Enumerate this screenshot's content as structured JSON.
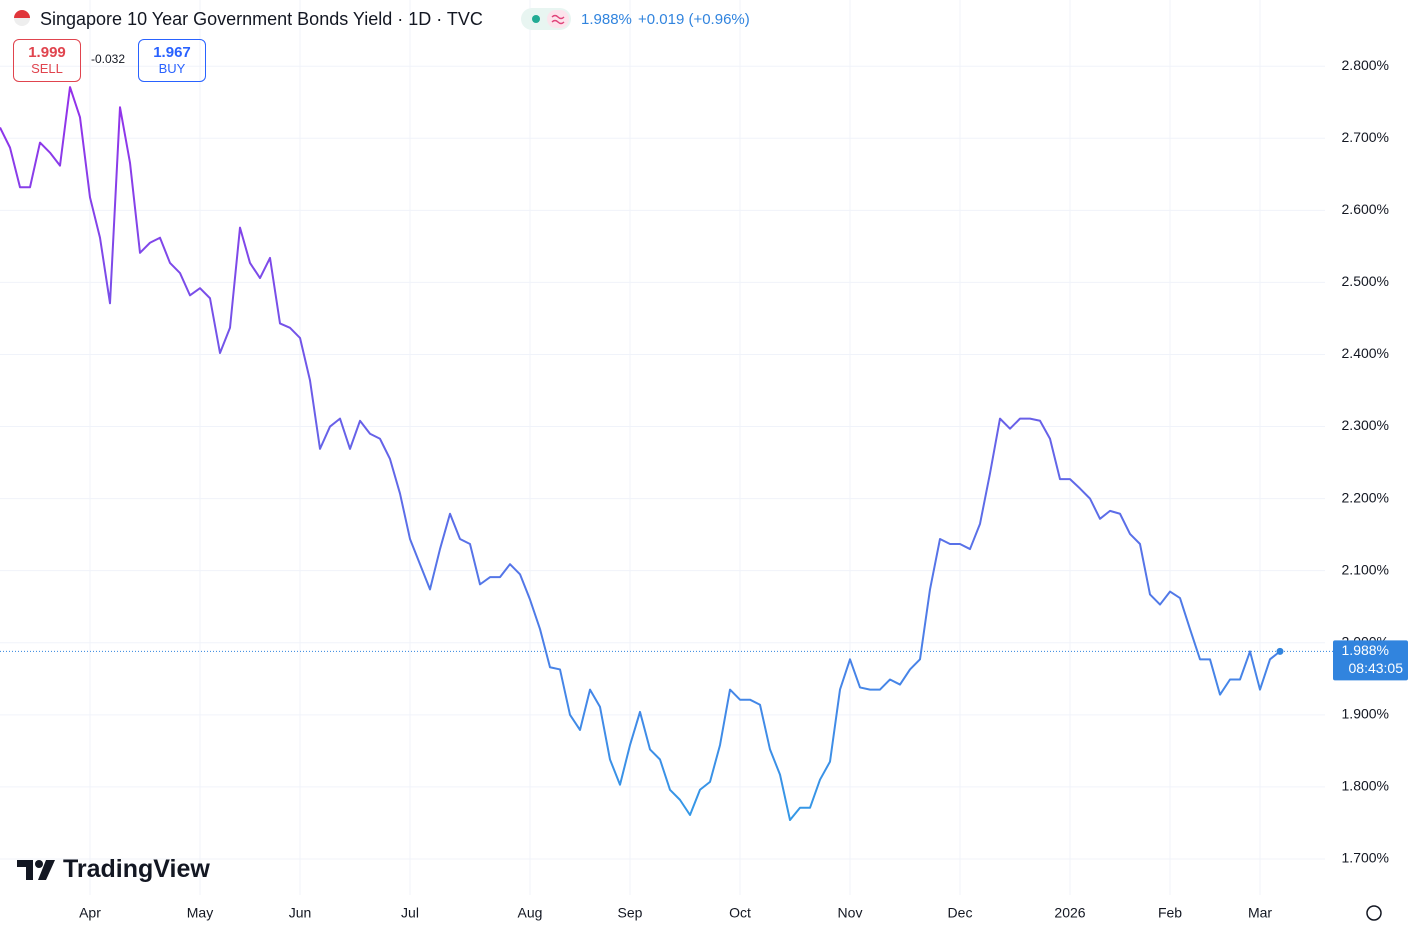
{
  "header": {
    "title": "Singapore 10 Year Government Bonds Yield · 1D · TVC",
    "change": "+0.019 (+0.96%)",
    "sell": {
      "price": "1.999",
      "label": "SELL"
    },
    "spread": "-0.032",
    "buy": {
      "price": "1.967",
      "label": "BUY"
    },
    "logo": "TradingView"
  },
  "chart_data": {
    "type": "line",
    "categories": [
      null,
      null,
      null,
      null,
      null,
      null,
      null,
      null,
      null,
      "Apr",
      null,
      null,
      null,
      null,
      null,
      null,
      null,
      null,
      null,
      null,
      "May",
      null,
      null,
      null,
      null,
      null,
      null,
      null,
      null,
      null,
      "Jun",
      null,
      null,
      null,
      null,
      null,
      null,
      null,
      null,
      null,
      null,
      "Jul",
      null,
      null,
      null,
      null,
      null,
      null,
      null,
      null,
      null,
      null,
      null,
      "Aug",
      null,
      null,
      null,
      null,
      null,
      null,
      null,
      null,
      null,
      "Sep",
      null,
      null,
      null,
      null,
      null,
      null,
      null,
      null,
      null,
      null,
      "Oct",
      null,
      null,
      null,
      null,
      null,
      null,
      null,
      null,
      null,
      null,
      "Nov",
      null,
      null,
      null,
      null,
      null,
      null,
      null,
      null,
      null,
      null,
      "Dec",
      null,
      null,
      null,
      null,
      null,
      null,
      null,
      null,
      null,
      null,
      "2026",
      null,
      null,
      null,
      null,
      null,
      null,
      null,
      null,
      null,
      "Feb",
      null,
      null,
      null,
      null,
      null,
      null,
      null,
      null,
      "Mar",
      null,
      null
    ],
    "values": [
      2.715,
      2.687,
      2.632,
      2.632,
      2.694,
      2.68,
      2.662,
      2.771,
      2.729,
      2.618,
      2.562,
      2.471,
      2.743,
      2.666,
      2.541,
      2.555,
      2.562,
      2.527,
      2.513,
      2.482,
      2.492,
      2.478,
      2.402,
      2.437,
      2.576,
      2.527,
      2.506,
      2.534,
      2.443,
      2.437,
      2.423,
      2.364,
      2.269,
      2.3,
      2.311,
      2.269,
      2.308,
      2.29,
      2.283,
      2.255,
      2.207,
      2.144,
      2.109,
      2.074,
      2.13,
      2.179,
      2.144,
      2.137,
      2.081,
      2.091,
      2.091,
      2.109,
      2.095,
      2.06,
      2.019,
      1.966,
      1.963,
      1.9,
      1.879,
      1.935,
      1.911,
      1.838,
      1.803,
      1.858,
      1.904,
      1.852,
      1.838,
      1.796,
      1.782,
      1.761,
      1.796,
      1.807,
      1.858,
      1.935,
      1.921,
      1.921,
      1.914,
      1.852,
      1.817,
      1.754,
      1.771,
      1.771,
      1.81,
      1.835,
      1.935,
      1.977,
      1.938,
      1.935,
      1.935,
      1.949,
      1.942,
      1.963,
      1.977,
      2.074,
      2.144,
      2.137,
      2.137,
      2.13,
      2.165,
      2.235,
      2.311,
      2.297,
      2.311,
      2.311,
      2.308,
      2.283,
      2.227,
      2.227,
      2.214,
      2.2,
      2.172,
      2.183,
      2.179,
      2.151,
      2.137,
      2.067,
      2.053,
      2.071,
      2.062,
      2.019,
      1.977,
      1.977,
      1.928,
      1.949,
      1.949,
      1.988,
      1.935,
      1.977,
      1.988
    ],
    "gradient_colors": [
      "#a024ea",
      "#2aa3e6"
    ],
    "ylim": [
      1.65,
      2.896
    ],
    "yticks": [
      {
        "value": 1.7,
        "label": "1.700%"
      },
      {
        "value": 1.8,
        "label": "1.800%"
      },
      {
        "value": 1.9,
        "label": "1.900%"
      },
      {
        "value": 2.0,
        "label": "2.000%"
      },
      {
        "value": 2.1,
        "label": "2.100%"
      },
      {
        "value": 2.2,
        "label": "2.200%"
      },
      {
        "value": 2.3,
        "label": "2.300%"
      },
      {
        "value": 2.4,
        "label": "2.400%"
      },
      {
        "value": 2.5,
        "label": "2.500%"
      },
      {
        "value": 2.6,
        "label": "2.600%"
      },
      {
        "value": 2.7,
        "label": "2.700%"
      },
      {
        "value": 2.8,
        "label": "2.800%"
      }
    ],
    "grid": true,
    "last_price": {
      "value": 1.988,
      "label": "1.988%"
    },
    "countdown": "08:43:05",
    "last_price_color": "#3184de"
  }
}
